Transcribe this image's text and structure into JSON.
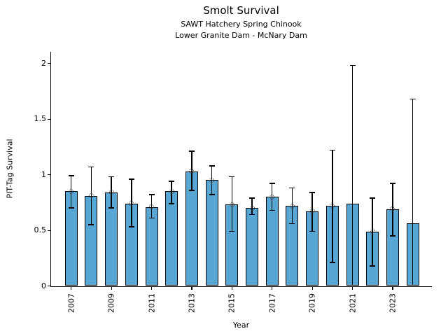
{
  "chart_data": {
    "type": "bar",
    "title": "Smolt Survival",
    "subtitle": [
      "SAWT Hatchery Spring Chinook",
      "Lower Granite Dam - McNary Dam"
    ],
    "xlabel": "Year",
    "ylabel": "PIT-Tag Survival",
    "ylim": [
      0,
      2.1
    ],
    "yticks": [
      0,
      0.5,
      1,
      1.5,
      2
    ],
    "ytick_labels": [
      "0",
      "0.5",
      "1",
      "1.5",
      "2"
    ],
    "categories": [
      "2007",
      "2008",
      "2009",
      "2010",
      "2011",
      "2012",
      "2013",
      "2014",
      "2015",
      "2016",
      "2017",
      "2018",
      "2019",
      "2020",
      "2021",
      "2022",
      "2023",
      "2024"
    ],
    "xtick_years": [
      "2007",
      "2009",
      "2011",
      "2013",
      "2015",
      "2017",
      "2019",
      "2021",
      "2023"
    ],
    "values": [
      0.85,
      0.81,
      0.84,
      0.74,
      0.71,
      0.85,
      1.03,
      0.95,
      0.73,
      0.7,
      0.8,
      0.72,
      0.67,
      0.72,
      0.74,
      0.49,
      0.69,
      0.56
    ],
    "error_low": [
      0.7,
      0.55,
      0.7,
      0.53,
      0.61,
      0.74,
      0.86,
      0.82,
      0.49,
      0.64,
      0.68,
      0.56,
      0.49,
      0.21,
      0.0,
      0.18,
      0.45,
      0.0
    ],
    "error_high": [
      0.99,
      1.07,
      0.98,
      0.96,
      0.82,
      0.94,
      1.21,
      1.08,
      0.98,
      0.79,
      0.92,
      0.88,
      0.84,
      1.22,
      1.98,
      0.79,
      0.92,
      1.68
    ],
    "point_marker": [
      true,
      true,
      true,
      true,
      true,
      true,
      true,
      true,
      true,
      true,
      true,
      true,
      true,
      true,
      false,
      true,
      true,
      false
    ],
    "bar_color": "#58a6d3",
    "bar_edge_color": "#000000",
    "errorbar_color": "#000000",
    "marker_style": "open-circle",
    "marker_edge_color": "#333333",
    "background_color": "#ffffff",
    "grid": false,
    "legend": null
  }
}
